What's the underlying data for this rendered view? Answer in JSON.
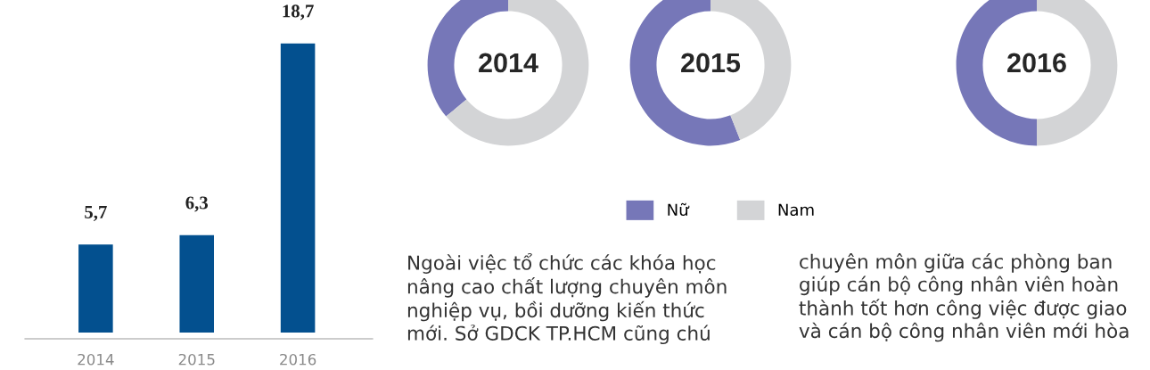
{
  "chart_data": [
    {
      "type": "bar",
      "categories": [
        "2014",
        "2015",
        "2016"
      ],
      "values": [
        5.7,
        6.3,
        18.7
      ],
      "value_labels": [
        "5,7",
        "6,3",
        "18,7"
      ],
      "color": "#03508f",
      "tick_labels": "x",
      "grid": false
    },
    {
      "type": "donut",
      "categories": [
        "Nữ",
        "Nam"
      ],
      "colors": [
        "#7677b8",
        "#d3d4d6"
      ],
      "legend": "bottom",
      "series": [
        {
          "name": "2014",
          "values": [
            36,
            64
          ]
        },
        {
          "name": "2015",
          "values": [
            56,
            44
          ]
        },
        {
          "name": "2016",
          "values": [
            50,
            50
          ]
        }
      ]
    },
    {
      "type": "other",
      "annotations": [
        "Ngoài việc tổ chức các khóa học\nnâng cao chất lượng chuyên môn\nnghiệp vụ, bồi dưỡng kiến thức\nmới. Sở GDCK TP.HCM cũng chú",
        "chuyên môn giữa các phòng ban\ngiúp cán bộ công nhân viên hoàn\nthành tốt hơn công việc được giao\nvà cán bộ công nhân viên mới hòa"
      ]
    }
  ]
}
